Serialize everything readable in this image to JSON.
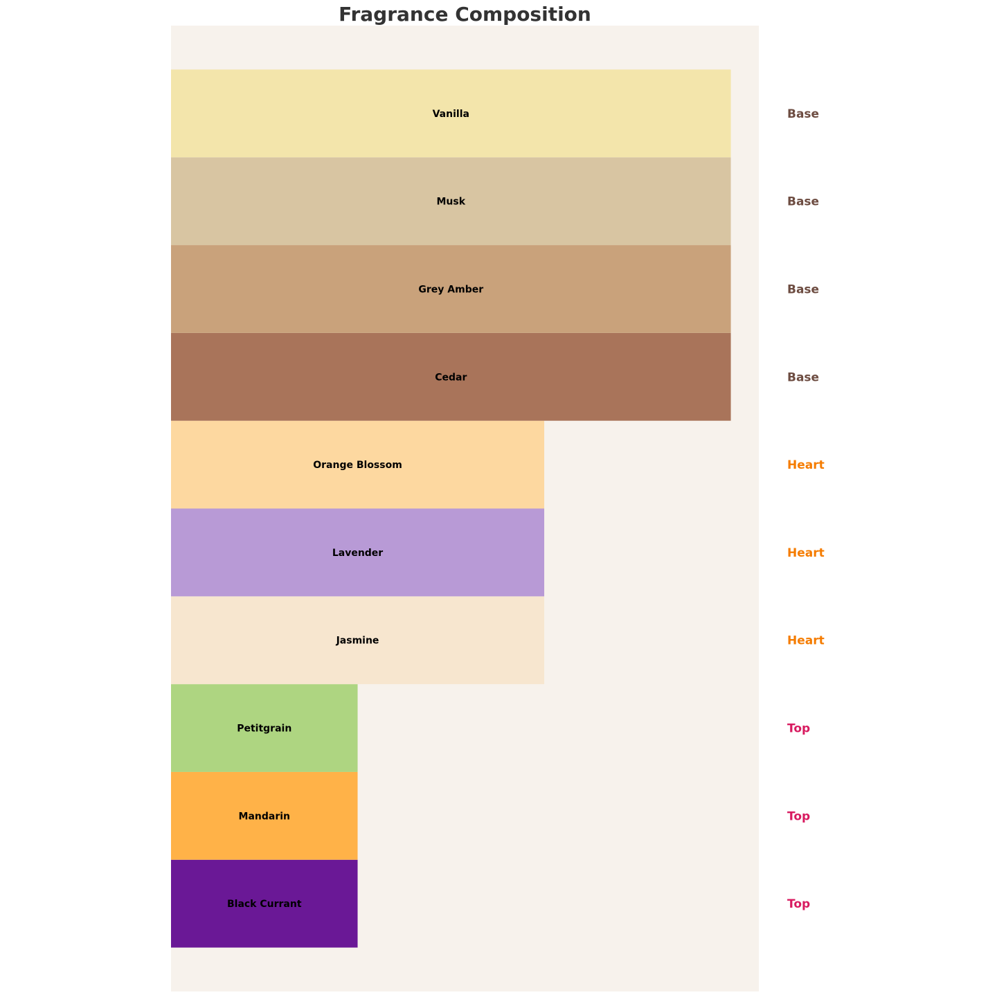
{
  "chart_data": {
    "type": "bar",
    "orientation": "horizontal",
    "title": "Fragrance Composition",
    "xlabel": "",
    "ylabel": "",
    "xlim": [
      0,
      3.15
    ],
    "ylim": [
      -1,
      10
    ],
    "grid": false,
    "axes_visible": false,
    "background_color": "#f7f2ec",
    "bars": [
      {
        "label": "Black Currant",
        "value": 1,
        "note_type": "Top",
        "color": "#6a1896"
      },
      {
        "label": "Mandarin",
        "value": 1,
        "note_type": "Top",
        "color": "#ffb248"
      },
      {
        "label": "Petitgrain",
        "value": 1,
        "note_type": "Top",
        "color": "#aed581"
      },
      {
        "label": "Jasmine",
        "value": 2,
        "note_type": "Heart",
        "color": "#f7e6cf"
      },
      {
        "label": "Lavender",
        "value": 2,
        "note_type": "Heart",
        "color": "#b89ad6"
      },
      {
        "label": "Orange Blossom",
        "value": 2,
        "note_type": "Heart",
        "color": "#fdd8a0"
      },
      {
        "label": "Cedar",
        "value": 3,
        "note_type": "Base",
        "color": "#a9745a"
      },
      {
        "label": "Grey Amber",
        "value": 3,
        "note_type": "Base",
        "color": "#c9a27b"
      },
      {
        "label": "Musk",
        "value": 3,
        "note_type": "Base",
        "color": "#d8c5a2"
      },
      {
        "label": "Vanilla",
        "value": 3,
        "note_type": "Base",
        "color": "#f3e5ab"
      }
    ],
    "note_type_colors": {
      "Top": "#d81b60",
      "Heart": "#f57c00",
      "Base": "#6d4c41"
    }
  }
}
